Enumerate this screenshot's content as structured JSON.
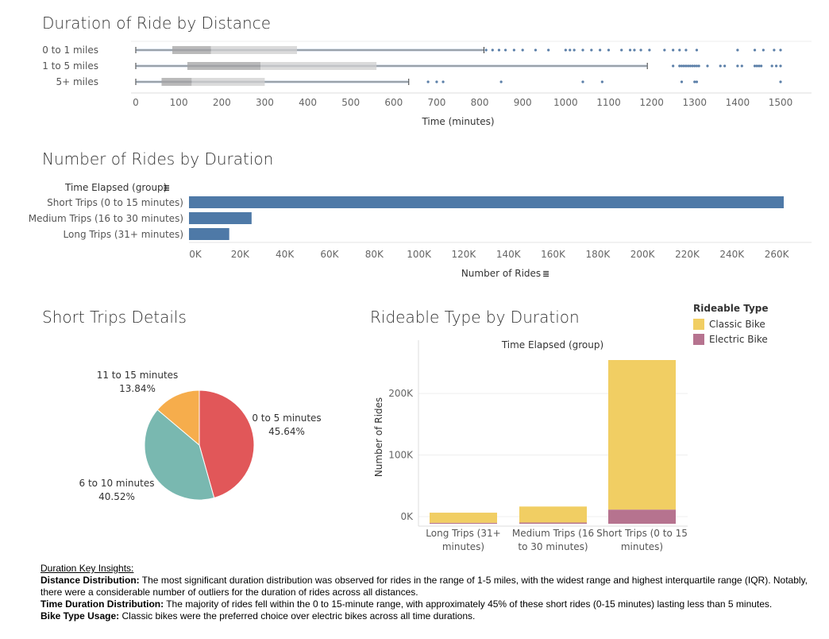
{
  "titles": {
    "duration_by_distance": "Duration of Ride by Distance",
    "rides_by_duration": "Number of Rides by Duration",
    "short_trips_details": "Short Trips Details",
    "rideable_by_duration": "Rideable Type by Duration"
  },
  "colors": {
    "bar_blue": "#4e79a7",
    "classic": "#f1ce63",
    "electric": "#b6738f",
    "pie_0_5": "#e15759",
    "pie_6_10": "#79b8b0",
    "pie_11_15": "#f6ad4c"
  },
  "chart_data": [
    {
      "type": "box",
      "title": "Duration of Ride by Distance",
      "xlabel": "Time (minutes)",
      "xlim": [
        0,
        1500
      ],
      "xticks": [
        0,
        100,
        200,
        300,
        400,
        500,
        600,
        700,
        800,
        900,
        1000,
        1100,
        1200,
        1300,
        1400,
        1500
      ],
      "categories": [
        "0 to 1 miles",
        "1 to 5 miles",
        "5+ miles"
      ],
      "boxes": [
        {
          "name": "0 to 1 miles",
          "whisker_low": 0,
          "q1": 85,
          "median": 175,
          "q3": 375,
          "whisker_high": 810,
          "outliers": [
            815,
            830,
            845,
            860,
            880,
            900,
            930,
            960,
            1000,
            1010,
            1020,
            1040,
            1060,
            1080,
            1100,
            1130,
            1150,
            1160,
            1175,
            1195,
            1230,
            1250,
            1265,
            1280,
            1305,
            1400,
            1440,
            1460,
            1485,
            1500
          ]
        },
        {
          "name": "1 to 5 miles",
          "whisker_low": 0,
          "q1": 120,
          "median": 290,
          "q3": 560,
          "whisker_high": 1190,
          "outliers": [
            1250,
            1265,
            1270,
            1275,
            1280,
            1285,
            1290,
            1295,
            1300,
            1305,
            1310,
            1330,
            1360,
            1370,
            1400,
            1410,
            1440,
            1445,
            1450,
            1455,
            1480,
            1490,
            1500
          ]
        },
        {
          "name": "5+ miles",
          "whisker_low": 0,
          "q1": 60,
          "median": 130,
          "q3": 300,
          "whisker_high": 635,
          "outliers": [
            680,
            700,
            715,
            850,
            1040,
            1085,
            1270,
            1300,
            1305,
            1500
          ]
        }
      ]
    },
    {
      "type": "bar",
      "orientation": "horizontal",
      "title": "Number of Rides by Duration",
      "category_header": "Time Elapsed (group)",
      "xlabel": "Number of Rides",
      "categories": [
        "Short Trips (0 to 15 minutes)",
        "Medium Trips (16 to 30 minutes)",
        "Long Trips (31+ minutes)"
      ],
      "values": [
        266000,
        28000,
        18000
      ],
      "xlim": [
        0,
        275000
      ],
      "xticks": [
        "0K",
        "20K",
        "40K",
        "60K",
        "80K",
        "100K",
        "120K",
        "140K",
        "160K",
        "180K",
        "200K",
        "220K",
        "240K",
        "260K"
      ]
    },
    {
      "type": "pie",
      "title": "Short Trips Details",
      "slices": [
        {
          "label": "0 to 5 minutes",
          "pct_label": "45.64%",
          "value": 45.64
        },
        {
          "label": "6 to 10 minutes",
          "pct_label": "40.52%",
          "value": 40.52
        },
        {
          "label": "11 to 15 minutes",
          "pct_label": "13.84%",
          "value": 13.84
        }
      ]
    },
    {
      "type": "bar",
      "stacked": true,
      "title": "Rideable Type by Duration",
      "subtitle": "Time Elapsed (group)",
      "ylabel": "Number of Rides",
      "ylim": [
        0,
        270000
      ],
      "yticks": [
        "0K",
        "100K",
        "200K"
      ],
      "categories": [
        "Long Trips (31+ minutes)",
        "Medium Trips (16 to 30 minutes)",
        "Short Trips (0 to 15 minutes)"
      ],
      "category_lines": [
        [
          "Long Trips (31+",
          "minutes)"
        ],
        [
          "Medium Trips (16",
          "to 30 minutes)"
        ],
        [
          "Short Trips (0 to 15",
          "minutes)"
        ]
      ],
      "series": [
        {
          "name": "Electric Bike",
          "values": [
            1500,
            2000,
            23000
          ]
        },
        {
          "name": "Classic Bike",
          "values": [
            16500,
            26000,
            243000
          ]
        }
      ],
      "legend_title": "Rideable Type",
      "legend": [
        "Classic Bike",
        "Electric Bike"
      ]
    }
  ],
  "notes": {
    "heading": "Duration Key Insights:",
    "distance_label": "Distance Distribution:",
    "distance_text": " The most significant duration distribution was observed for rides in the range of 1-5 miles, with the widest range and highest interquartile range (IQR). Notably, there were a considerable number of outliers for the duration of rides across all distances.",
    "time_label": "Time Duration Distribution:",
    "time_text": " The majority of rides fell within the 0 to 15-minute range, with approximately 45% of these short rides (0-15 minutes) lasting less than 5 minutes.",
    "bike_label": "Bike Type Usage:",
    "bike_text": " Classic bikes were the preferred choice over electric bikes across all time durations."
  }
}
